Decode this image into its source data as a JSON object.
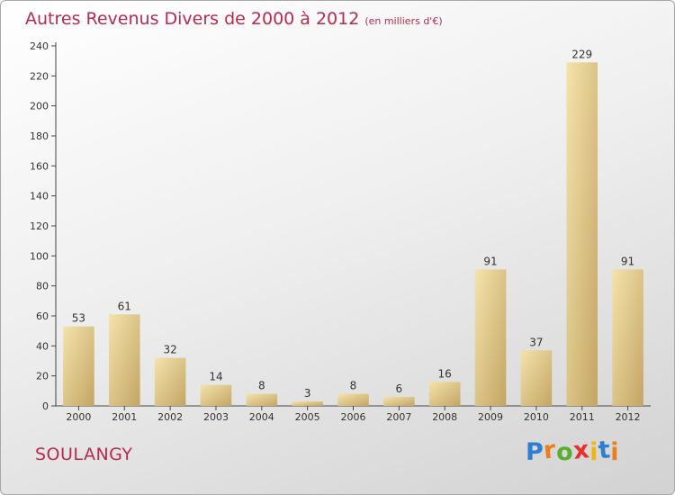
{
  "title": "Autres Revenus Divers de 2000 à 2012",
  "subtitle": "(en milliers d'€)",
  "place": "SOULANGY",
  "logo": {
    "letters": [
      "P",
      "r",
      "o",
      "x",
      "i",
      "t",
      "i"
    ],
    "colors": [
      "#2e7fd0",
      "#ee7d1c",
      "#58ae2f",
      "#e5322d",
      "#f1b512",
      "#2e7fd0",
      "#ee7d1c"
    ]
  },
  "colors": {
    "accent": "#b62a52",
    "bar_light": "#f3dfa2",
    "bar_dark": "#c4a766",
    "axis": "#444444"
  },
  "chart_data": {
    "type": "bar",
    "title": "Autres Revenus Divers de 2000 à 2012",
    "subtitle": "(en milliers d'€)",
    "categories": [
      "2000",
      "2001",
      "2002",
      "2003",
      "2004",
      "2005",
      "2006",
      "2007",
      "2008",
      "2009",
      "2010",
      "2011",
      "2012"
    ],
    "values": [
      53,
      61,
      32,
      14,
      8,
      3,
      8,
      6,
      16,
      91,
      37,
      229,
      91
    ],
    "ylim": [
      0,
      240
    ],
    "yticks": [
      0,
      20,
      40,
      60,
      80,
      100,
      120,
      140,
      160,
      180,
      200,
      220,
      240
    ],
    "grid": false,
    "legend": "none"
  }
}
